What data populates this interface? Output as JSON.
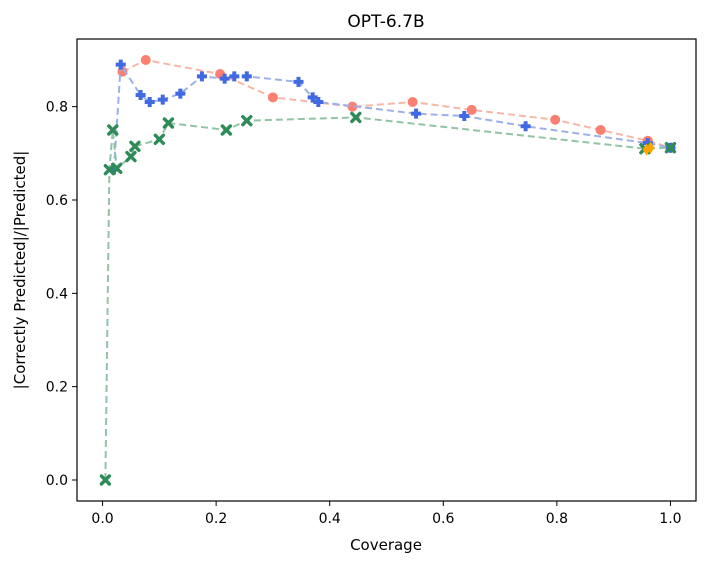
{
  "chart_data": {
    "type": "scatter",
    "title": "OPT-6.7B",
    "xlabel": "Coverage",
    "ylabel": "|Correctly Predicted|/|Predicted|",
    "xlim": [
      -0.045,
      1.045
    ],
    "ylim": [
      -0.045,
      0.945
    ],
    "xticks": [
      0.0,
      0.2,
      0.4,
      0.6,
      0.8,
      1.0
    ],
    "xtick_labels": [
      "0.0",
      "0.2",
      "0.4",
      "0.6",
      "0.8",
      "1.0"
    ],
    "yticks": [
      0.0,
      0.2,
      0.4,
      0.6,
      0.8
    ],
    "ytick_labels": [
      "0.0",
      "0.2",
      "0.4",
      "0.6",
      "0.8"
    ],
    "grid": false,
    "series": [
      {
        "name": "series-red",
        "marker": "circle",
        "color": "#fa8072",
        "line_color": "#f6b7a8",
        "x": [
          0.035,
          0.076,
          0.207,
          0.3,
          0.44,
          0.546,
          0.65,
          0.797,
          0.877,
          0.96,
          1.0
        ],
        "y": [
          0.875,
          0.9,
          0.87,
          0.82,
          0.8,
          0.81,
          0.793,
          0.772,
          0.75,
          0.727,
          0.712
        ]
      },
      {
        "name": "series-blue",
        "marker": "plus",
        "color": "#4169e1",
        "line_color": "#9cb0e8",
        "x": [
          0.02,
          0.032,
          0.067,
          0.083,
          0.106,
          0.137,
          0.175,
          0.215,
          0.232,
          0.254,
          0.345,
          0.37,
          0.38,
          0.552,
          0.637,
          0.745,
          0.96,
          1.0
        ],
        "y": [
          0.665,
          0.89,
          0.825,
          0.81,
          0.815,
          0.828,
          0.865,
          0.86,
          0.865,
          0.865,
          0.853,
          0.82,
          0.81,
          0.785,
          0.78,
          0.758,
          0.722,
          0.712
        ]
      },
      {
        "name": "series-green",
        "marker": "x",
        "color": "#2e8b57",
        "line_color": "#93c2a6",
        "x": [
          0.005,
          0.012,
          0.018,
          0.025,
          0.05,
          0.057,
          0.1,
          0.116,
          0.218,
          0.254,
          0.446,
          0.955,
          1.0
        ],
        "y": [
          0.0,
          0.665,
          0.75,
          0.668,
          0.693,
          0.715,
          0.73,
          0.765,
          0.75,
          0.77,
          0.777,
          0.71,
          0.712
        ]
      },
      {
        "name": "series-orange",
        "marker": "diamond",
        "color": "#ffa500",
        "line_color": "#ffd27f",
        "x": [
          0.958,
          0.965
        ],
        "y": [
          0.708,
          0.712
        ]
      }
    ]
  }
}
